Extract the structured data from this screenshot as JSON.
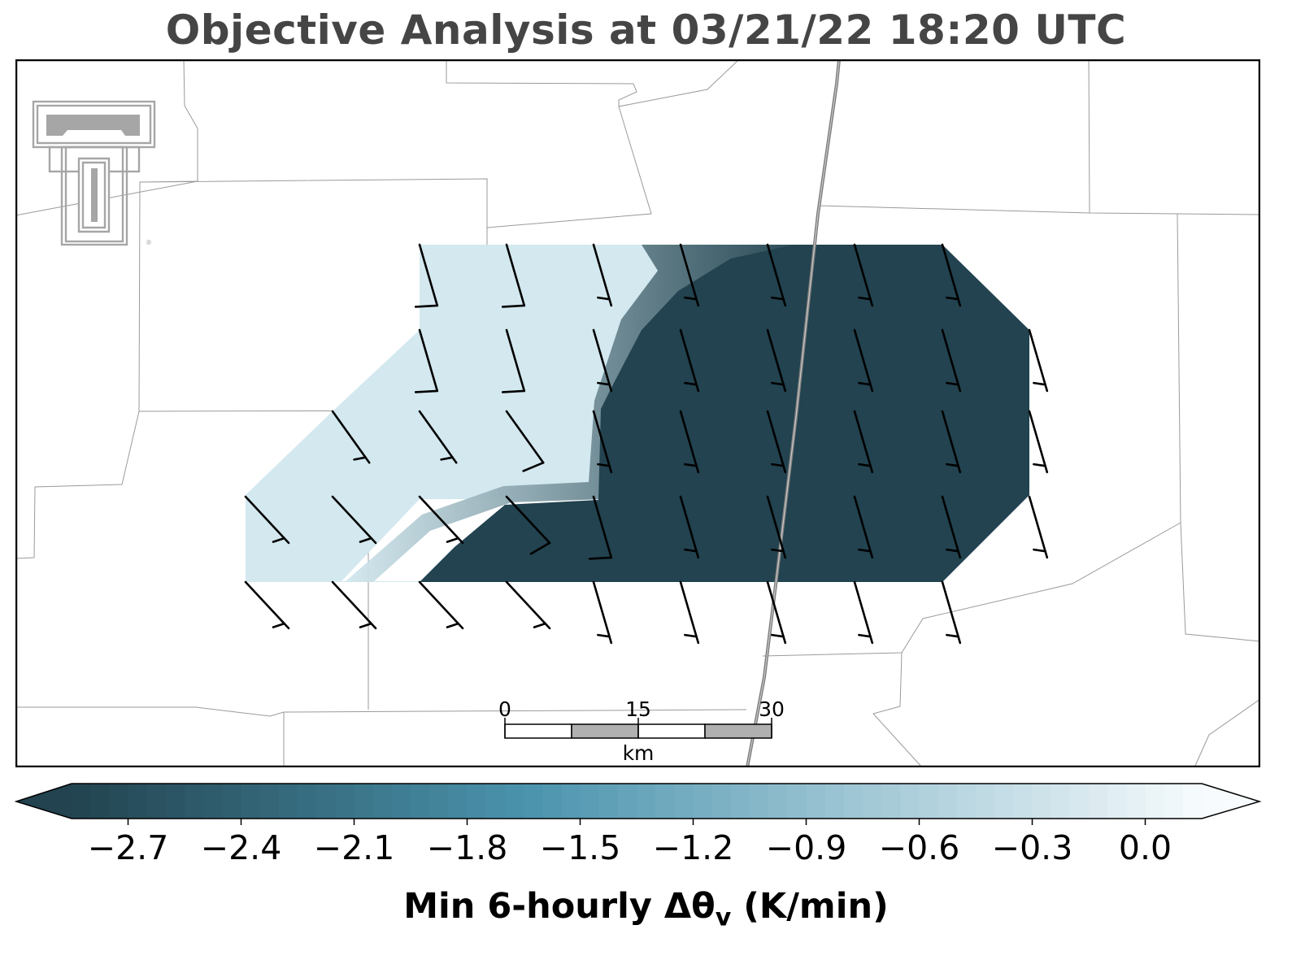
{
  "title": "Objective Analysis at 03/21/22 18:20 UTC",
  "colorbar": {
    "label_main": "Min 6-hourly Δθ",
    "label_sub": "v",
    "label_units": "(K/min)",
    "ticks": [
      "−2.7",
      "−2.4",
      "−2.1",
      "−1.8",
      "−1.5",
      "−1.2",
      "−0.9",
      "−0.6",
      "−0.3",
      "0.0"
    ],
    "tick_values": [
      -2.7,
      -2.4,
      -2.1,
      -1.8,
      -1.5,
      -1.2,
      -0.9,
      -0.6,
      -0.3,
      0.0
    ],
    "range": [
      -2.85,
      0.15
    ],
    "extend": "both",
    "color_low": "#22434f",
    "color_mid": "#4a93ad",
    "color_high": "#f7fbfd"
  },
  "scale_bar": {
    "ticks": [
      "0",
      "15",
      "30"
    ],
    "units": "km",
    "fill_colors": [
      "#ffffff",
      "#b0b0b0"
    ]
  },
  "logo": {
    "name": "Double T logo",
    "color": "#a6a6a6"
  },
  "field": {
    "colors": {
      "low": "#22434f",
      "edge": "#3a8aaa",
      "high": "#d3e8ef"
    },
    "value_low": -2.85,
    "value_high": -0.6
  },
  "wind_barbs": {
    "shaft_color": "#000000",
    "count": 45,
    "direction_note": "mostly northwesterly to north-northwesterly winds, 10 kt barbs, some 5 kt"
  }
}
